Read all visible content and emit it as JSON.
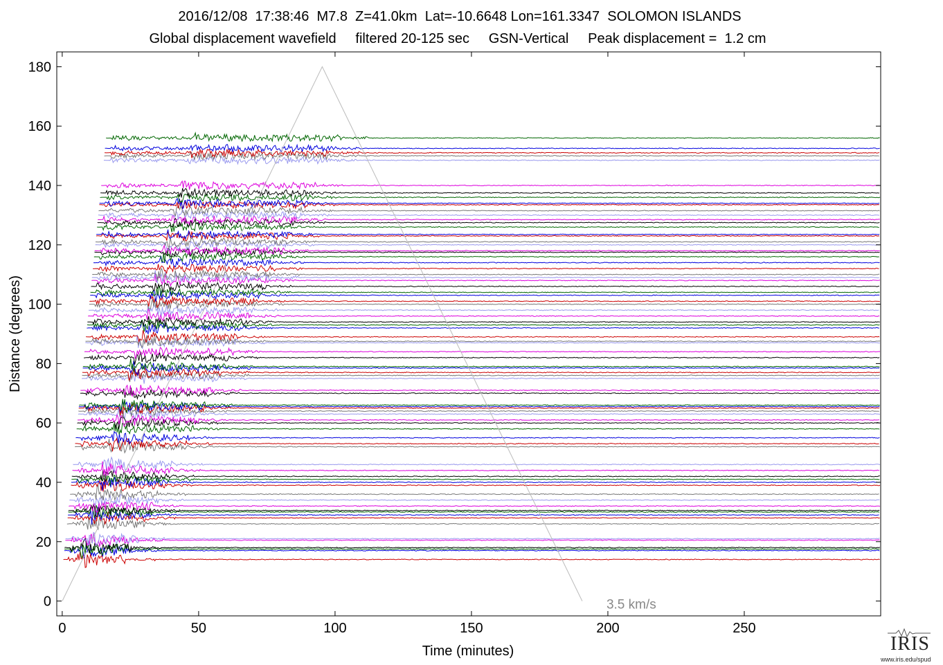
{
  "header": {
    "title_line1": "2016/12/08  17:38:46  M7.8  Z=41.0km  Lat=-10.6648 Lon=161.3347  SOLOMON ISLANDS",
    "title_line2": "Global displacement wavefield     filtered 20-125 sec     GSN-Vertical     Peak displacement =  1.2 cm"
  },
  "logo": {
    "word": "IRIS",
    "url": "www.iris.edu/spud"
  },
  "chart_data": {
    "type": "line",
    "title": "2016/12/08  17:38:46  M7.8  Z=41.0km  Lat=-10.6648 Lon=161.3347  SOLOMON ISLANDS",
    "subtitle": "Global displacement wavefield     filtered 20-125 sec     GSN-Vertical     Peak displacement =  1.2 cm",
    "xlabel": "Time (minutes)",
    "ylabel": "Distance (degrees)",
    "xlim": [
      -2,
      300
    ],
    "ylim": [
      -5,
      185
    ],
    "x_ticks": [
      0,
      50,
      100,
      150,
      200,
      250
    ],
    "y_ticks": [
      0,
      20,
      40,
      60,
      80,
      100,
      120,
      140,
      160,
      180
    ],
    "grid": false,
    "reference_line": {
      "label": "3.5 km/s",
      "points": [
        [
          0,
          0
        ],
        [
          95.3,
          180
        ],
        [
          190.6,
          0
        ]
      ],
      "color": "#bbbbbb"
    },
    "trace_colors": [
      "#cc0000",
      "#0000dd",
      "#006600",
      "#000000",
      "#dd00dd",
      "#9999ee",
      "#777777"
    ],
    "trace_distances": [
      14,
      17,
      17.5,
      18,
      20.5,
      21,
      26,
      28,
      29,
      30,
      30.5,
      32,
      34,
      36,
      39,
      40,
      41,
      42,
      44,
      46,
      52,
      53,
      55,
      58,
      60,
      61,
      63,
      64,
      65,
      65.5,
      66,
      70,
      71,
      75,
      76,
      77,
      78.5,
      79,
      82,
      84,
      87,
      87.5,
      89,
      92,
      93,
      94,
      96,
      98,
      100,
      101,
      103,
      104,
      106,
      108,
      109,
      110,
      112,
      114,
      116,
      117.5,
      118,
      120,
      121,
      123,
      123.5,
      126,
      127.5,
      128.5,
      130,
      131.5,
      133.5,
      134,
      136,
      137.5,
      140,
      148.5,
      150,
      151,
      152.5,
      156
    ]
  }
}
